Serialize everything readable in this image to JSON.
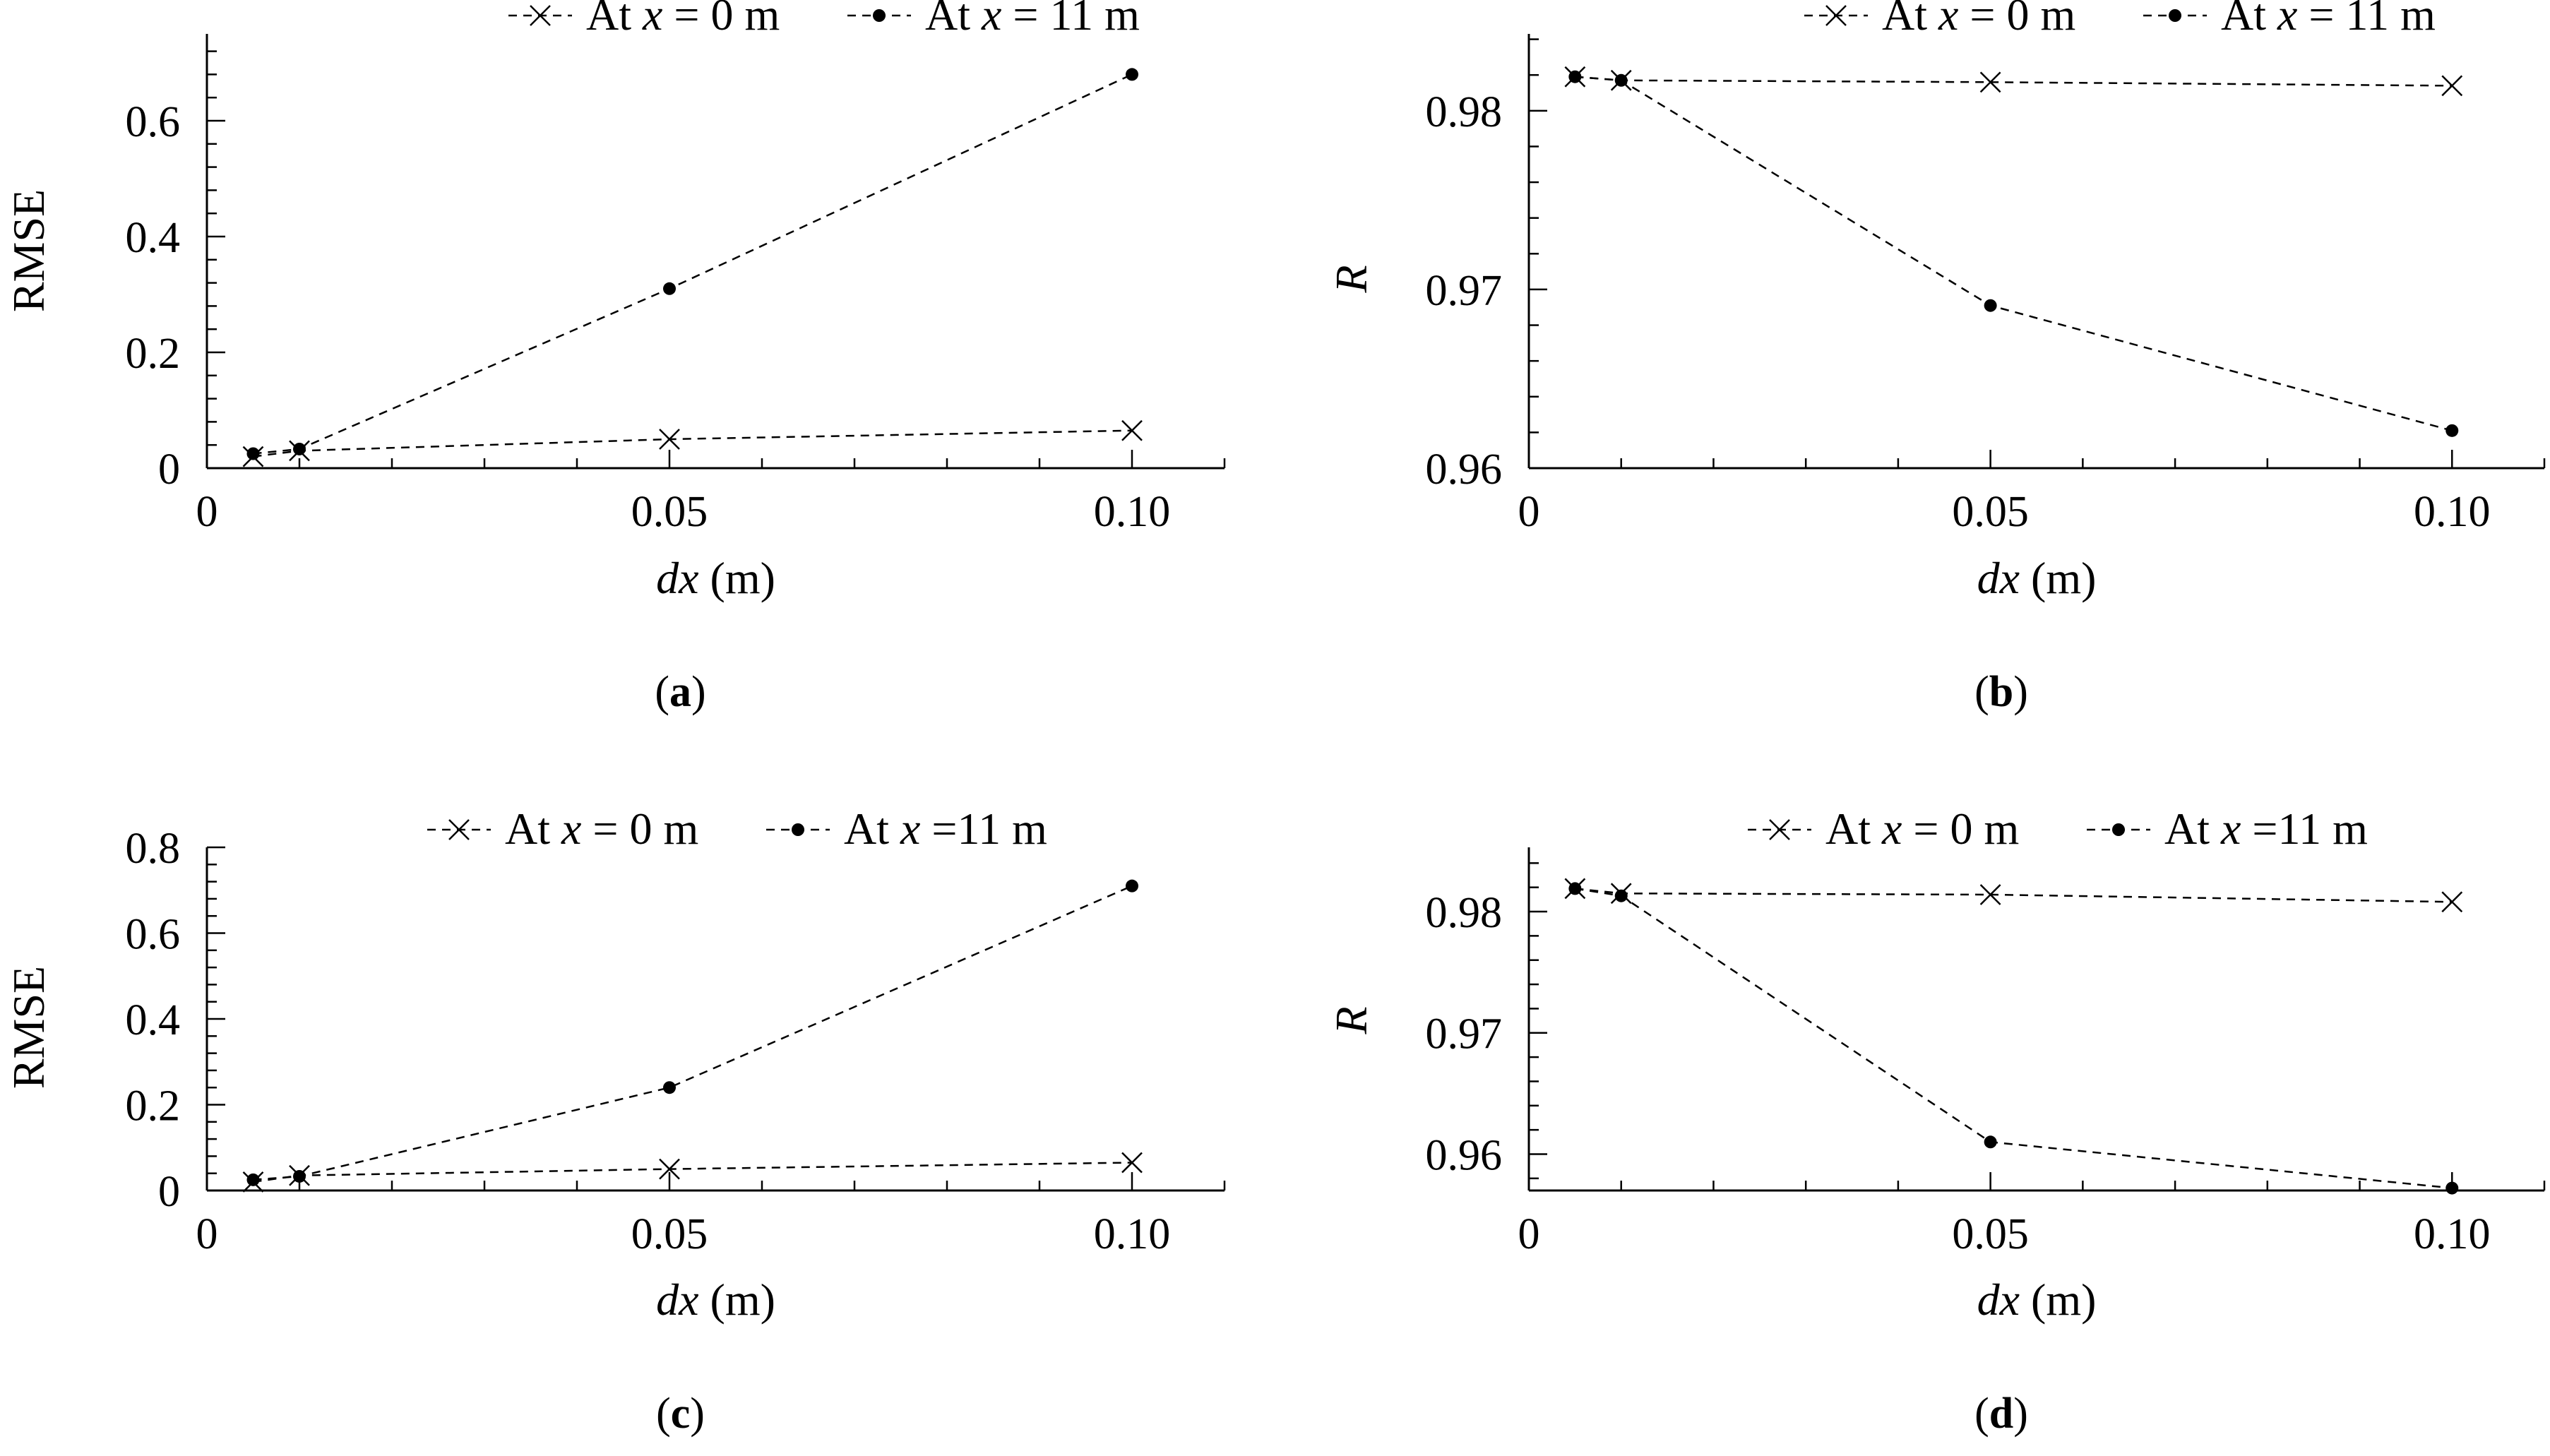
{
  "figure": {
    "panels": [
      {
        "id": "a",
        "label": "a",
        "ylabel": "RMSE",
        "ylabel_italic": false,
        "xlabel_var": "dx",
        "xlabel_unit": " (m)",
        "x_ticks": [
          "0",
          "0.05",
          "0.10"
        ],
        "y_ticks": [
          "0",
          "0.2",
          "0.4",
          "0.6"
        ],
        "legend": [
          {
            "prefix": "At ",
            "var": "x",
            "suffix": " = 0 m",
            "marker": "cross"
          },
          {
            "prefix": "At ",
            "var": "x",
            "suffix": " = 11 m",
            "marker": "dot"
          }
        ]
      },
      {
        "id": "b",
        "label": "b",
        "ylabel": "R",
        "ylabel_italic": true,
        "xlabel_var": "dx",
        "xlabel_unit": " (m)",
        "x_ticks": [
          "0",
          "0.05",
          "0.10"
        ],
        "y_ticks": [
          "0.96",
          "0.97",
          "0.98"
        ],
        "legend": [
          {
            "prefix": "At ",
            "var": "x",
            "suffix": " = 0 m",
            "marker": "cross"
          },
          {
            "prefix": "At ",
            "var": "x",
            "suffix": " = 11 m",
            "marker": "dot"
          }
        ]
      },
      {
        "id": "c",
        "label": "c",
        "ylabel": "RMSE",
        "ylabel_italic": false,
        "xlabel_var": "dx",
        "xlabel_unit": " (m)",
        "x_ticks": [
          "0",
          "0.05",
          "0.10"
        ],
        "y_ticks": [
          "0",
          "0.2",
          "0.4",
          "0.6",
          "0.8"
        ],
        "legend": [
          {
            "prefix": "At ",
            "var": "x",
            "suffix": " = 0 m",
            "marker": "cross"
          },
          {
            "prefix": "At ",
            "var": "x",
            "suffix": " =11 m",
            "marker": "dot"
          }
        ]
      },
      {
        "id": "d",
        "label": "d",
        "ylabel": "R",
        "ylabel_italic": true,
        "xlabel_var": "dx",
        "xlabel_unit": " (m)",
        "x_ticks": [
          "0",
          "0.05",
          "0.10"
        ],
        "y_ticks": [
          "0.96",
          "0.97",
          "0.98"
        ],
        "legend": [
          {
            "prefix": "At ",
            "var": "x",
            "suffix": " = 0 m",
            "marker": "cross"
          },
          {
            "prefix": "At ",
            "var": "x",
            "suffix": " =11 m",
            "marker": "dot"
          }
        ]
      }
    ]
  },
  "chart_data": [
    {
      "type": "line",
      "panel": "a",
      "xlabel": "dx (m)",
      "ylabel": "RMSE",
      "xlim": [
        0,
        0.11
      ],
      "ylim": [
        0,
        0.75
      ],
      "x_ticks": [
        0,
        0.05,
        0.1
      ],
      "y_ticks": [
        0,
        0.2,
        0.4,
        0.6
      ],
      "x": [
        0.005,
        0.01,
        0.05,
        0.1
      ],
      "series": [
        {
          "name": "At x = 0 m",
          "marker": "cross",
          "values": [
            0.02,
            0.03,
            0.05,
            0.065
          ]
        },
        {
          "name": "At x = 11 m",
          "marker": "dot",
          "values": [
            0.025,
            0.033,
            0.31,
            0.68
          ]
        }
      ],
      "legend": "top",
      "grid": false
    },
    {
      "type": "line",
      "panel": "b",
      "xlabel": "dx (m)",
      "ylabel": "R",
      "xlim": [
        0,
        0.11
      ],
      "ylim": [
        0.96,
        0.9843
      ],
      "x_ticks": [
        0,
        0.05,
        0.1
      ],
      "y_ticks": [
        0.96,
        0.97,
        0.98
      ],
      "x": [
        0.005,
        0.01,
        0.05,
        0.1
      ],
      "series": [
        {
          "name": "At x = 0 m",
          "marker": "cross",
          "values": [
            0.9819,
            0.9817,
            0.9816,
            0.9814
          ]
        },
        {
          "name": "At x = 11 m",
          "marker": "dot",
          "values": [
            0.9819,
            0.9817,
            0.9691,
            0.9621
          ]
        }
      ],
      "legend": "top",
      "grid": false
    },
    {
      "type": "line",
      "panel": "c",
      "xlabel": "dx (m)",
      "ylabel": "RMSE",
      "xlim": [
        0,
        0.11
      ],
      "ylim": [
        0,
        0.8
      ],
      "x_ticks": [
        0,
        0.05,
        0.1
      ],
      "y_ticks": [
        0,
        0.2,
        0.4,
        0.6,
        0.8
      ],
      "x": [
        0.005,
        0.01,
        0.05,
        0.1
      ],
      "series": [
        {
          "name": "At x = 0 m",
          "marker": "cross",
          "values": [
            0.02,
            0.035,
            0.05,
            0.065
          ]
        },
        {
          "name": "At x =11 m",
          "marker": "dot",
          "values": [
            0.025,
            0.033,
            0.24,
            0.71
          ]
        }
      ],
      "legend": "top",
      "grid": false
    },
    {
      "type": "line",
      "panel": "d",
      "xlabel": "dx (m)",
      "ylabel": "R",
      "xlim": [
        0,
        0.11
      ],
      "ylim": [
        0.957,
        0.9853
      ],
      "x_ticks": [
        0,
        0.05,
        0.1
      ],
      "y_ticks": [
        0.96,
        0.97,
        0.98
      ],
      "x": [
        0.005,
        0.01,
        0.05,
        0.1
      ],
      "series": [
        {
          "name": "At x = 0 m",
          "marker": "cross",
          "values": [
            0.9819,
            0.9815,
            0.9814,
            0.9808
          ]
        },
        {
          "name": "At x =11 m",
          "marker": "dot",
          "values": [
            0.9819,
            0.9813,
            0.961,
            0.9572
          ]
        }
      ],
      "legend": "top",
      "grid": false
    }
  ]
}
